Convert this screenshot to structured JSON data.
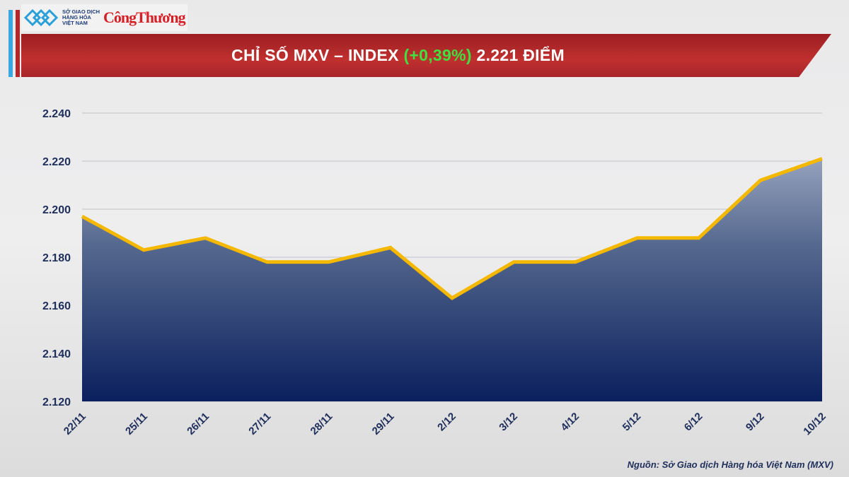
{
  "header": {
    "logo_mxv_text": "SỞ GIAO DỊCH HÀNG HÓA VIỆT NAM",
    "logo_ct_text": "CôngThương"
  },
  "title": {
    "prefix": "CHỈ SỐ MXV – INDEX ",
    "change": "(+0,39%)",
    "suffix": " 2.221 ĐIỂM"
  },
  "colors": {
    "line": "#f5b800",
    "fill_top": "#8f9cb8",
    "fill_bottom": "#0f2463",
    "title_band": "#b3262b",
    "change": "#3fe03f"
  },
  "chart_data": {
    "type": "area",
    "title": "CHỈ SỐ MXV – INDEX (+0,39%) 2.221 ĐIỂM",
    "categories": [
      "22/11",
      "25/11",
      "26/11",
      "27/11",
      "28/11",
      "29/11",
      "2/12",
      "3/12",
      "4/12",
      "5/12",
      "6/12",
      "9/12",
      "10/12"
    ],
    "values": [
      2197,
      2183,
      2188,
      2178,
      2178,
      2184,
      2163,
      2178,
      2178,
      2188,
      2188,
      2212,
      2221
    ],
    "ylim": [
      2120,
      2240
    ],
    "yticks": [
      2120,
      2140,
      2160,
      2180,
      2200,
      2220,
      2240
    ],
    "ytick_labels": [
      "2.120",
      "2.140",
      "2.160",
      "2.180",
      "2.200",
      "2.220",
      "2.240"
    ],
    "grid": true,
    "legend": "none"
  },
  "source": "Nguồn: Sở Giao dịch Hàng hóa Việt Nam (MXV)"
}
